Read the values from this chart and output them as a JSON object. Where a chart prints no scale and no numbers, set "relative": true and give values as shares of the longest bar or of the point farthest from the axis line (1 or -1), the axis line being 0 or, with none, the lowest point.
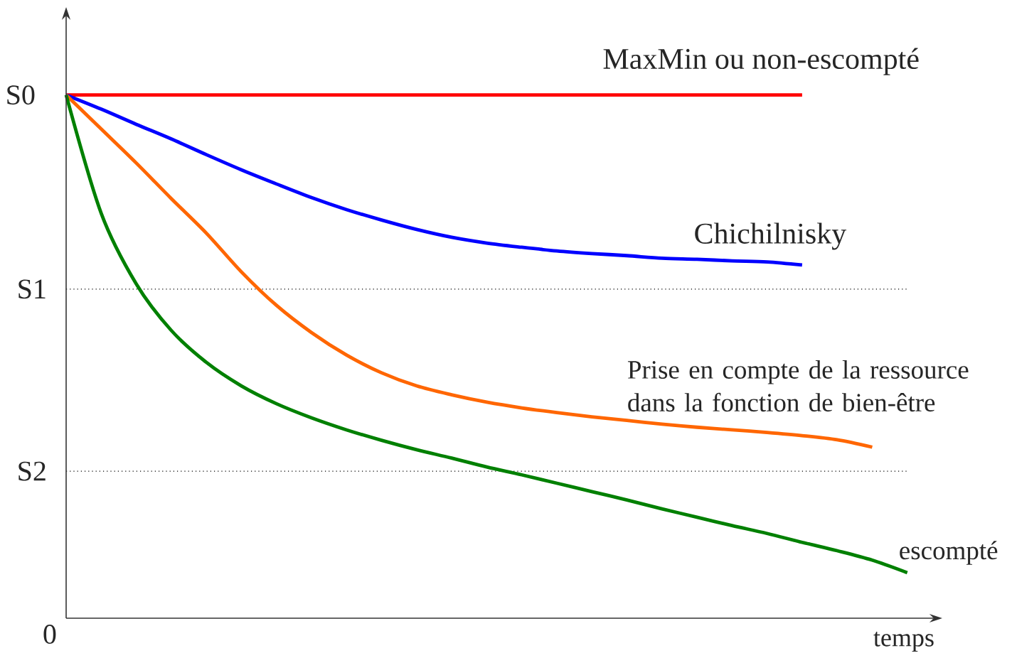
{
  "chart_data": {
    "type": "line",
    "relative": true,
    "xlabel": "temps",
    "marker": "none",
    "categories": [
      null,
      null,
      null,
      null,
      null,
      null,
      null,
      null,
      null,
      null,
      null,
      null,
      null,
      null,
      null,
      null,
      null,
      null,
      null,
      null,
      null,
      null,
      null,
      null,
      null
    ],
    "series": [
      {
        "name": "MaxMin ou non-escompté",
        "color": "#ff0000",
        "values": [
          1,
          1,
          1,
          1,
          1,
          1,
          1,
          1,
          1,
          1,
          1,
          1,
          1,
          1,
          1,
          1,
          1,
          1,
          1,
          1,
          1,
          1,
          null,
          null,
          null
        ]
      },
      {
        "name": "Chichilnisky",
        "color": "#0000ff",
        "values": [
          1,
          0.973,
          0.944,
          0.916,
          0.886,
          0.857,
          0.83,
          0.804,
          0.781,
          0.761,
          0.743,
          0.728,
          0.717,
          0.709,
          0.702,
          0.697,
          0.693,
          0.688,
          0.686,
          0.683,
          0.681,
          0.675,
          null,
          null,
          null
        ]
      },
      {
        "name": "Prise en compte de la ressource dans la fonction de bien-être",
        "color": "#ff6600",
        "values": [
          1,
          0.935,
          0.87,
          0.802,
          0.736,
          0.662,
          0.598,
          0.546,
          0.503,
          0.469,
          0.444,
          0.427,
          0.413,
          0.402,
          0.393,
          0.385,
          0.378,
          0.371,
          0.365,
          0.36,
          0.355,
          0.349,
          0.341,
          0.327,
          null
        ]
      },
      {
        "name": "escompté",
        "color": "#008000",
        "values": [
          1,
          0.774,
          0.639,
          0.55,
          0.489,
          0.444,
          0.41,
          0.383,
          0.36,
          0.34,
          0.322,
          0.306,
          0.289,
          0.274,
          0.258,
          0.242,
          0.226,
          0.209,
          0.193,
          0.177,
          0.162,
          0.145,
          0.129,
          0.111,
          0.087
        ]
      }
    ],
    "ref_lines": [
      {
        "axis": "y",
        "value": 0.629,
        "label": "S1",
        "color": "#000000",
        "line_style": "dotted"
      },
      {
        "axis": "y",
        "value": 0.281,
        "label": "S2",
        "color": "#000000",
        "line_style": "dotted"
      }
    ],
    "annotations": [
      "S0",
      "0"
    ]
  }
}
